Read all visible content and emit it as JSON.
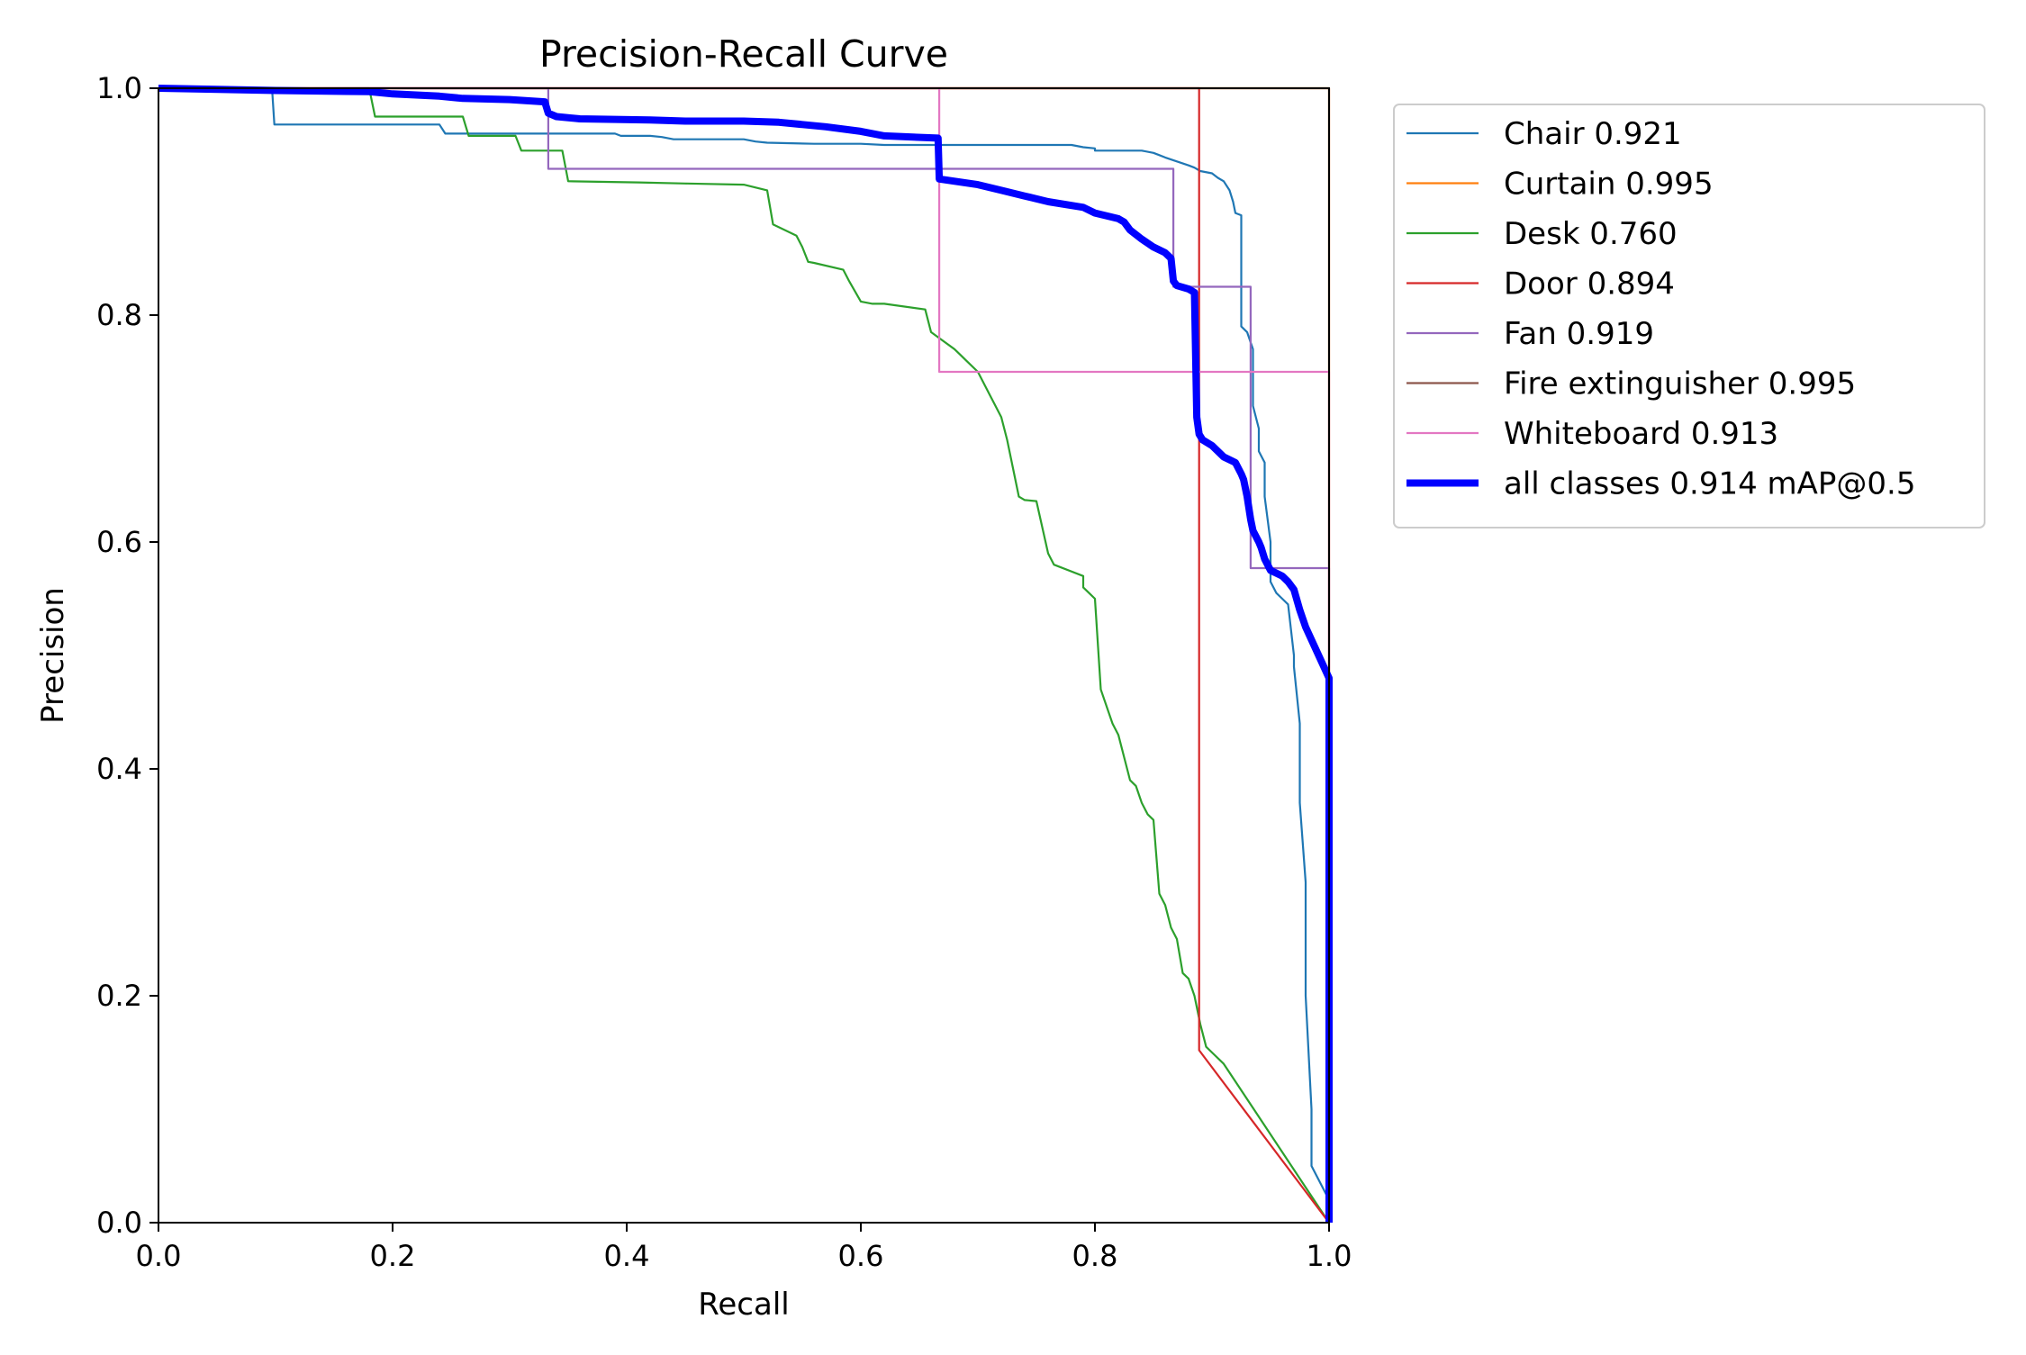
{
  "chart_data": {
    "type": "line",
    "title": "Precision-Recall Curve",
    "xlabel": "Recall",
    "ylabel": "Precision",
    "xlim": [
      0,
      1
    ],
    "ylim": [
      0,
      1
    ],
    "xticks": [
      "0.0",
      "0.2",
      "0.4",
      "0.6",
      "0.8",
      "1.0"
    ],
    "yticks": [
      "0.0",
      "0.2",
      "0.4",
      "0.6",
      "0.8",
      "1.0"
    ],
    "grid": false,
    "legend_position": "outside-top-right",
    "series": [
      {
        "name": "Chair 0.921",
        "color": "#1f77b4",
        "width": "thin",
        "x": [
          0,
          0.097,
          0.099,
          0.24,
          0.245,
          0.39,
          0.395,
          0.42,
          0.43,
          0.435,
          0.44,
          0.5,
          0.51,
          0.52,
          0.56,
          0.6,
          0.62,
          0.7,
          0.78,
          0.79,
          0.8,
          0.8,
          0.84,
          0.85,
          0.855,
          0.86,
          0.88,
          0.885,
          0.89,
          0.9,
          0.905,
          0.91,
          0.915,
          0.918,
          0.92,
          0.925,
          0.925,
          0.93,
          0.935,
          0.935,
          0.94,
          0.94,
          0.945,
          0.945,
          0.95,
          0.95,
          0.955,
          0.96,
          0.965,
          0.97,
          0.97,
          0.975,
          0.975,
          0.98,
          0.98,
          0.985,
          0.985,
          1.0,
          1.0
        ],
        "y": [
          1.0,
          1.0,
          0.968,
          0.968,
          0.96,
          0.96,
          0.958,
          0.958,
          0.957,
          0.956,
          0.955,
          0.955,
          0.953,
          0.952,
          0.951,
          0.951,
          0.95,
          0.95,
          0.95,
          0.948,
          0.947,
          0.945,
          0.945,
          0.943,
          0.941,
          0.939,
          0.932,
          0.93,
          0.927,
          0.925,
          0.921,
          0.918,
          0.91,
          0.9,
          0.89,
          0.888,
          0.79,
          0.785,
          0.77,
          0.72,
          0.7,
          0.68,
          0.67,
          0.64,
          0.6,
          0.565,
          0.555,
          0.55,
          0.545,
          0.5,
          0.49,
          0.44,
          0.37,
          0.3,
          0.2,
          0.1,
          0.05,
          0.02,
          0.0
        ]
      },
      {
        "name": "Curtain 0.995",
        "color": "#ff7f0e",
        "width": "thin",
        "x": [
          0,
          1.0,
          1.0
        ],
        "y": [
          1.0,
          1.0,
          0.0
        ]
      },
      {
        "name": "Desk 0.760",
        "color": "#2ca02c",
        "width": "thin",
        "x": [
          0,
          0.18,
          0.185,
          0.26,
          0.265,
          0.305,
          0.31,
          0.345,
          0.35,
          0.41,
          0.45,
          0.5,
          0.52,
          0.525,
          0.545,
          0.55,
          0.555,
          0.56,
          0.585,
          0.59,
          0.6,
          0.61,
          0.62,
          0.655,
          0.66,
          0.68,
          0.685,
          0.69,
          0.7,
          0.71,
          0.715,
          0.72,
          0.725,
          0.73,
          0.735,
          0.74,
          0.75,
          0.76,
          0.765,
          0.79,
          0.79,
          0.795,
          0.8,
          0.805,
          0.815,
          0.82,
          0.825,
          0.83,
          0.835,
          0.84,
          0.845,
          0.85,
          0.855,
          0.86,
          0.865,
          0.87,
          0.875,
          0.88,
          0.885,
          0.89,
          0.895,
          0.9,
          0.91,
          1.0
        ],
        "y": [
          1.0,
          1.0,
          0.975,
          0.975,
          0.958,
          0.958,
          0.945,
          0.945,
          0.918,
          0.917,
          0.916,
          0.915,
          0.91,
          0.88,
          0.87,
          0.86,
          0.847,
          0.846,
          0.84,
          0.83,
          0.812,
          0.81,
          0.81,
          0.805,
          0.785,
          0.77,
          0.765,
          0.76,
          0.75,
          0.73,
          0.72,
          0.71,
          0.69,
          0.665,
          0.64,
          0.637,
          0.636,
          0.59,
          0.58,
          0.57,
          0.56,
          0.555,
          0.55,
          0.47,
          0.44,
          0.43,
          0.41,
          0.39,
          0.385,
          0.37,
          0.36,
          0.355,
          0.29,
          0.28,
          0.26,
          0.25,
          0.22,
          0.215,
          0.2,
          0.175,
          0.155,
          0.15,
          0.14,
          0.0
        ]
      },
      {
        "name": "Door 0.894",
        "color": "#d62728",
        "width": "thin",
        "x": [
          0,
          0.889,
          0.889,
          1.0
        ],
        "y": [
          1.0,
          1.0,
          0.152,
          0.0
        ]
      },
      {
        "name": "Fan 0.919",
        "color": "#9467bd",
        "width": "thin",
        "x": [
          0,
          0.333,
          0.333,
          0.867,
          0.867,
          0.933,
          0.933,
          1.0,
          1.0
        ],
        "y": [
          1.0,
          1.0,
          0.929,
          0.929,
          0.825,
          0.825,
          0.577,
          0.577,
          0.0
        ]
      },
      {
        "name": "Fire extinguisher 0.995",
        "color": "#8c564b",
        "width": "thin",
        "x": [
          0,
          1.0,
          1.0
        ],
        "y": [
          1.0,
          1.0,
          0.0
        ]
      },
      {
        "name": "Whiteboard 0.913",
        "color": "#e377c2",
        "width": "thin",
        "x": [
          0,
          0.667,
          0.667,
          1.0,
          1.0
        ],
        "y": [
          1.0,
          1.0,
          0.75,
          0.75,
          0.0
        ]
      },
      {
        "name": "all classes 0.914 mAP@0.5",
        "color": "#0000ff",
        "width": "thick",
        "x": [
          0,
          0.1,
          0.18,
          0.2,
          0.24,
          0.26,
          0.3,
          0.33,
          0.333,
          0.34,
          0.36,
          0.42,
          0.45,
          0.5,
          0.53,
          0.55,
          0.57,
          0.6,
          0.62,
          0.666,
          0.667,
          0.7,
          0.72,
          0.74,
          0.76,
          0.79,
          0.8,
          0.82,
          0.825,
          0.83,
          0.84,
          0.85,
          0.86,
          0.865,
          0.867,
          0.87,
          0.88,
          0.885,
          0.887,
          0.889,
          0.892,
          0.9,
          0.91,
          0.92,
          0.925,
          0.927,
          0.93,
          0.933,
          0.935,
          0.94,
          0.942,
          0.945,
          0.95,
          0.96,
          0.965,
          0.97,
          0.975,
          0.98,
          1.0,
          1.0
        ],
        "y": [
          1.0,
          0.998,
          0.997,
          0.995,
          0.993,
          0.991,
          0.99,
          0.988,
          0.978,
          0.975,
          0.973,
          0.972,
          0.971,
          0.971,
          0.97,
          0.968,
          0.966,
          0.962,
          0.958,
          0.956,
          0.92,
          0.915,
          0.91,
          0.905,
          0.9,
          0.895,
          0.89,
          0.885,
          0.882,
          0.875,
          0.867,
          0.86,
          0.855,
          0.85,
          0.83,
          0.826,
          0.823,
          0.82,
          0.71,
          0.695,
          0.69,
          0.685,
          0.675,
          0.67,
          0.66,
          0.655,
          0.64,
          0.62,
          0.61,
          0.6,
          0.595,
          0.585,
          0.575,
          0.57,
          0.565,
          0.558,
          0.54,
          0.525,
          0.48,
          0.0
        ]
      }
    ]
  }
}
